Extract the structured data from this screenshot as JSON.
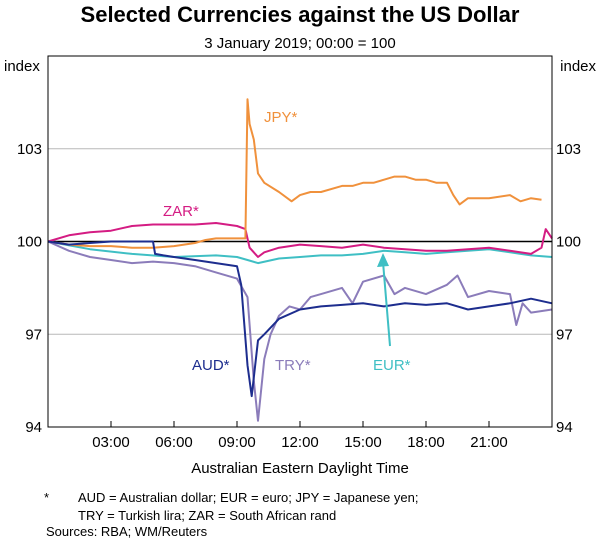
{
  "chart_data": {
    "type": "line",
    "title": "Selected Currencies against the US Dollar",
    "subtitle": "3 January 2019; 00:00 = 100",
    "xlabel": "Australian Eastern Daylight Time",
    "ylabel_left": "index",
    "ylabel_right": "index",
    "xlim": [
      0,
      24
    ],
    "ylim": [
      94,
      106
    ],
    "y_ticks": [
      "103",
      "100",
      "97",
      "94"
    ],
    "y_tick_values": [
      103,
      100,
      97,
      94
    ],
    "x_ticks": [
      "03:00",
      "06:00",
      "09:00",
      "12:00",
      "15:00",
      "18:00",
      "21:00"
    ],
    "x_tick_values": [
      3,
      6,
      9,
      12,
      15,
      18,
      21
    ],
    "grid": true,
    "series": [
      {
        "name": "JPY*",
        "color": "#f0913c",
        "x": [
          0,
          1,
          2,
          3,
          4,
          5,
          6,
          7,
          7.5,
          8,
          9,
          9.4,
          9.5,
          9.6,
          9.8,
          10,
          10.3,
          11,
          11.6,
          12,
          12.5,
          13,
          14,
          14.5,
          15,
          15.5,
          16,
          16.5,
          17,
          17.5,
          18,
          18.5,
          19,
          19.3,
          19.6,
          20,
          21,
          22,
          22.5,
          23,
          23.5
        ],
        "values": [
          100,
          99.9,
          99.85,
          99.85,
          99.8,
          99.8,
          99.85,
          99.95,
          100.05,
          100.1,
          100.1,
          100.1,
          104.6,
          103.8,
          103.3,
          102.2,
          101.9,
          101.6,
          101.3,
          101.5,
          101.6,
          101.6,
          101.8,
          101.8,
          101.9,
          101.9,
          102.0,
          102.1,
          102.1,
          102.0,
          102.0,
          101.9,
          101.9,
          101.5,
          101.2,
          101.4,
          101.4,
          101.5,
          101.3,
          101.4,
          101.35
        ]
      },
      {
        "name": "ZAR*",
        "color": "#d41c83",
        "x": [
          0,
          1,
          2,
          3,
          4,
          5,
          6,
          7,
          8,
          9,
          9.4,
          9.6,
          10,
          10.3,
          11,
          12,
          13,
          14,
          15,
          16,
          17,
          18,
          19,
          20,
          21,
          22,
          23,
          23.5,
          23.7,
          24
        ],
        "values": [
          100,
          100.2,
          100.3,
          100.35,
          100.5,
          100.55,
          100.55,
          100.55,
          100.6,
          100.5,
          100.4,
          99.8,
          99.5,
          99.65,
          99.8,
          99.9,
          99.85,
          99.8,
          99.9,
          99.8,
          99.75,
          99.7,
          99.7,
          99.75,
          99.8,
          99.7,
          99.6,
          99.8,
          100.4,
          100.1
        ]
      },
      {
        "name": "EUR*",
        "color": "#3fbfc4",
        "x": [
          0,
          2,
          4,
          6,
          8,
          9,
          9.5,
          10,
          11,
          12,
          13,
          14,
          15,
          16,
          17,
          18,
          19,
          20,
          21,
          22,
          23,
          24
        ],
        "values": [
          100,
          99.75,
          99.6,
          99.5,
          99.55,
          99.5,
          99.4,
          99.3,
          99.45,
          99.5,
          99.55,
          99.55,
          99.6,
          99.7,
          99.65,
          99.6,
          99.65,
          99.7,
          99.75,
          99.65,
          99.55,
          99.5
        ]
      },
      {
        "name": "AUD*",
        "color": "#1d2d8e",
        "x": [
          0,
          1,
          2,
          3,
          4,
          5,
          5.1,
          5.5,
          6,
          7,
          8,
          9,
          9.2,
          9.5,
          9.7,
          10,
          10.3,
          11,
          12,
          13,
          14,
          15,
          16,
          17,
          18,
          19,
          20,
          21,
          22,
          23,
          24
        ],
        "values": [
          100,
          99.9,
          99.95,
          100.0,
          100.0,
          100.0,
          99.6,
          99.55,
          99.5,
          99.4,
          99.3,
          99.2,
          98.6,
          96.0,
          95.0,
          96.8,
          97.0,
          97.5,
          97.8,
          97.9,
          97.95,
          98.0,
          97.9,
          98.0,
          97.95,
          98.0,
          97.8,
          97.9,
          98.0,
          98.15,
          98.0
        ]
      },
      {
        "name": "TRY*",
        "color": "#8b7cba",
        "x": [
          0,
          1,
          2,
          3,
          4,
          5,
          6,
          7,
          8,
          9,
          9.5,
          9.8,
          10,
          10.3,
          10.6,
          11,
          11.5,
          12,
          12.5,
          13,
          14,
          14.5,
          15,
          16,
          16.5,
          17,
          18,
          19,
          19.5,
          20,
          21,
          22,
          22.3,
          22.6,
          23,
          24
        ],
        "values": [
          100,
          99.7,
          99.5,
          99.4,
          99.3,
          99.35,
          99.3,
          99.2,
          99.0,
          98.8,
          98.2,
          95.5,
          94.2,
          96.2,
          97.0,
          97.6,
          97.9,
          97.8,
          98.2,
          98.3,
          98.5,
          98.0,
          98.7,
          98.9,
          98.3,
          98.5,
          98.3,
          98.6,
          98.9,
          98.2,
          98.4,
          98.3,
          97.3,
          98.0,
          97.7,
          97.8
        ]
      }
    ],
    "series_labels": [
      "JPY*",
      "ZAR*",
      "EUR*",
      "AUD*",
      "TRY*"
    ],
    "reference_line": 100
  },
  "footnote": {
    "marker": "*",
    "line1": "AUD = Australian dollar; EUR = euro; JPY  = Japanese yen;",
    "line2": "TRY = Turkish lira; ZAR = South African rand"
  },
  "sources": "Sources: RBA; WM/Reuters"
}
